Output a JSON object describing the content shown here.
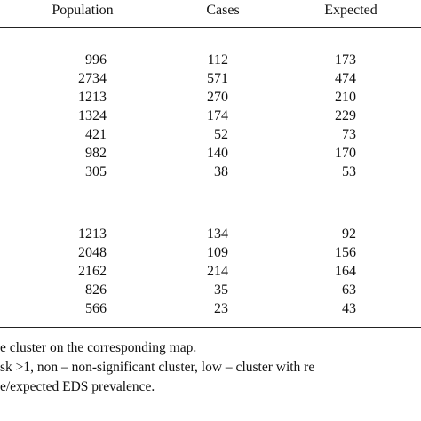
{
  "table": {
    "header": [
      "Population",
      "Cases",
      "Expected"
    ],
    "groups": [
      {
        "rows": [
          [
            996,
            112,
            173
          ],
          [
            2734,
            571,
            474
          ],
          [
            1213,
            270,
            210
          ],
          [
            1324,
            174,
            229
          ],
          [
            421,
            52,
            73
          ],
          [
            982,
            140,
            170
          ],
          [
            305,
            38,
            53
          ]
        ]
      },
      {
        "rows": [
          [
            1213,
            134,
            92
          ],
          [
            2048,
            109,
            156
          ],
          [
            2162,
            214,
            164
          ],
          [
            826,
            35,
            63
          ],
          [
            566,
            23,
            43
          ]
        ]
      }
    ]
  },
  "footnotes": [
    "e cluster on the corresponding map.",
    "sk >1, non – non-significant cluster, low – cluster with re",
    "e/expected EDS prevalence."
  ]
}
